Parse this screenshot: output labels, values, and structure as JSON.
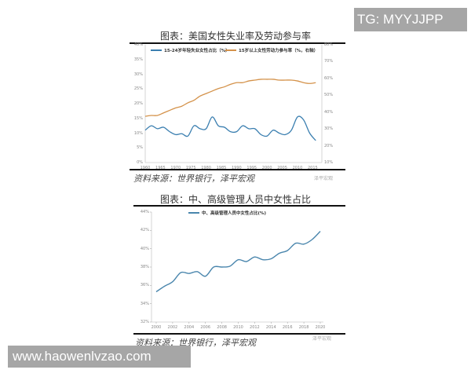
{
  "watermark_top": "TG: MYYJJPP",
  "watermark_bottom": "www.haowenlvzao.com",
  "chart1": {
    "title": "图表：美国女性失业率及劳动参与率",
    "source": "资料来源：世界银行，泽平宏观",
    "logo": "泽平宏观",
    "left_ticks": [
      "40%",
      "35%",
      "30%",
      "25%",
      "20%",
      "15%",
      "10%",
      "5%",
      "0%"
    ],
    "right_ticks": [
      "80%",
      "70%",
      "60%",
      "50%",
      "40%",
      "30%",
      "20%",
      "10%"
    ],
    "x_ticks": [
      "1960",
      "1965",
      "1970",
      "1975",
      "1980",
      "1985",
      "1990",
      "1995",
      "2000",
      "2005",
      "2010",
      "2015"
    ],
    "legend": [
      "15-24岁年轻失业女性占比（%）",
      "15岁以上女性劳动力参与率（%，右轴）"
    ]
  },
  "chart2": {
    "title": "图表：中、高级管理人员中女性占比",
    "source": "资料来源：世界银行，泽平宏观",
    "logo": "泽平宏观",
    "y_ticks": [
      "44%",
      "42%",
      "40%",
      "38%",
      "36%",
      "34%",
      "32%"
    ],
    "x_ticks": [
      "2000",
      "2002",
      "2004",
      "2006",
      "2008",
      "2010",
      "2012",
      "2014",
      "2016",
      "2018",
      "2020"
    ],
    "legend": "中、高级管理人员中女性占比(%)"
  },
  "chart_data": [
    {
      "type": "line",
      "title": "图表：美国女性失业率及劳动参与率",
      "xlabel": "",
      "ylabel": "",
      "x": [
        1960,
        1962,
        1964,
        1966,
        1968,
        1970,
        1972,
        1974,
        1976,
        1978,
        1980,
        1982,
        1984,
        1986,
        1988,
        1990,
        1992,
        1994,
        1996,
        1998,
        2000,
        2002,
        2004,
        2006,
        2008,
        2010,
        2012,
        2014,
        2016
      ],
      "series": [
        {
          "name": "15-24岁年轻失业女性占比（%）",
          "axis": "left",
          "color": "#3b7fb0",
          "values": [
            11,
            12.5,
            11.5,
            12,
            10.5,
            9.5,
            9.8,
            9,
            12.5,
            11.5,
            11.5,
            15.5,
            12.5,
            12,
            10.5,
            10.5,
            12.5,
            11.5,
            11.5,
            9.5,
            9,
            11,
            10,
            9.5,
            11,
            15.5,
            14.5,
            10,
            7.5
          ]
        },
        {
          "name": "15岁以上女性劳动力参与率（%，右轴）",
          "axis": "right",
          "color": "#d4924a",
          "values": [
            37.5,
            38,
            38,
            39.5,
            41,
            42.5,
            43.5,
            45.5,
            47,
            49.5,
            51,
            52.5,
            54,
            55,
            56.5,
            57.5,
            57.5,
            58.5,
            59,
            59.5,
            59.5,
            59.5,
            59,
            59,
            59,
            58.5,
            57.5,
            57,
            57.5
          ]
        }
      ],
      "ylim_left": [
        0,
        40
      ],
      "ylim_right": [
        10,
        80
      ],
      "grid": false,
      "legend_position": "top"
    },
    {
      "type": "line",
      "title": "图表：中、高级管理人员中女性占比",
      "xlabel": "",
      "ylabel": "",
      "x": [
        2000,
        2001,
        2002,
        2003,
        2004,
        2005,
        2006,
        2007,
        2008,
        2009,
        2010,
        2011,
        2012,
        2013,
        2014,
        2015,
        2016,
        2017,
        2018,
        2019,
        2020
      ],
      "series": [
        {
          "name": "中、高级管理人员中女性占比(%)",
          "color": "#4a86ad",
          "values": [
            35.3,
            35.9,
            36.4,
            37.4,
            37.3,
            37.5,
            37,
            38,
            38,
            38.1,
            38.8,
            38.6,
            39.1,
            38.8,
            38.9,
            39.5,
            39.8,
            40.6,
            40.5,
            41,
            41.9
          ]
        }
      ],
      "ylim": [
        32,
        44
      ],
      "grid": false,
      "legend_position": "top"
    }
  ]
}
